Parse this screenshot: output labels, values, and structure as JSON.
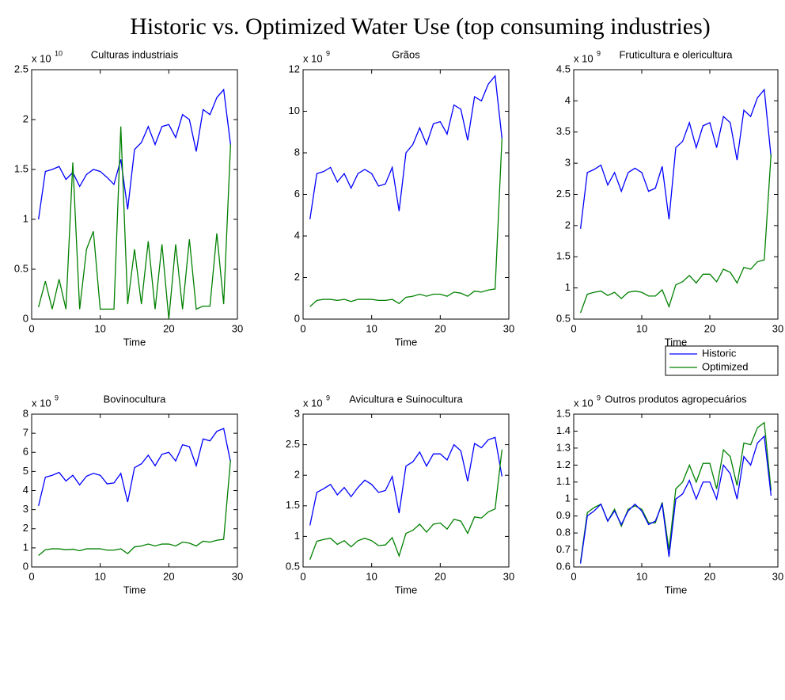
{
  "title": "Historic vs. Optimized Water Use (top consuming industries)",
  "chart_data": [
    {
      "type": "line",
      "title": "Culturas industriais",
      "xlabel": "Time",
      "y_multiplier": "x 10",
      "y_multiplier_exponent": "10",
      "x": [
        1,
        2,
        3,
        4,
        5,
        6,
        7,
        8,
        9,
        10,
        11,
        12,
        13,
        14,
        15,
        16,
        17,
        18,
        19,
        20,
        21,
        22,
        23,
        24,
        25,
        26,
        27,
        28,
        29
      ],
      "xlim": [
        0,
        30
      ],
      "xticks": [
        0,
        10,
        20,
        30
      ],
      "ylim": [
        0,
        2.5
      ],
      "yticks": [
        0,
        0.5,
        1,
        1.5,
        2,
        2.5
      ],
      "series": [
        {
          "color": "#0000ff",
          "values": [
            1.0,
            1.48,
            1.5,
            1.53,
            1.4,
            1.47,
            1.33,
            1.45,
            1.5,
            1.48,
            1.42,
            1.35,
            1.6,
            1.1,
            1.7,
            1.77,
            1.93,
            1.75,
            1.93,
            1.95,
            1.82,
            2.05,
            2.0,
            1.68,
            2.1,
            2.05,
            2.22,
            2.3,
            1.75
          ]
        },
        {
          "color": "#008000",
          "values": [
            0.12,
            0.38,
            0.1,
            0.4,
            0.1,
            1.57,
            0.1,
            0.7,
            0.88,
            0.1,
            0.1,
            0.1,
            1.93,
            0.15,
            0.7,
            0.15,
            0.78,
            0.1,
            0.75,
            0.0,
            0.75,
            0.1,
            0.8,
            0.1,
            0.13,
            0.13,
            0.86,
            0.15,
            1.75
          ]
        }
      ]
    },
    {
      "type": "line",
      "title": "Grãos",
      "xlabel": "Time",
      "y_multiplier": "x 10",
      "y_multiplier_exponent": "9",
      "x": [
        1,
        2,
        3,
        4,
        5,
        6,
        7,
        8,
        9,
        10,
        11,
        12,
        13,
        14,
        15,
        16,
        17,
        18,
        19,
        20,
        21,
        22,
        23,
        24,
        25,
        26,
        27,
        28,
        29
      ],
      "xlim": [
        0,
        30
      ],
      "xticks": [
        0,
        10,
        20,
        30
      ],
      "ylim": [
        0,
        12
      ],
      "yticks": [
        0,
        2,
        4,
        6,
        8,
        10,
        12
      ],
      "series": [
        {
          "color": "#0000ff",
          "values": [
            4.8,
            7.0,
            7.1,
            7.3,
            6.6,
            7.0,
            6.3,
            7.0,
            7.2,
            7.0,
            6.4,
            6.5,
            7.3,
            5.2,
            8.0,
            8.4,
            9.2,
            8.4,
            9.4,
            9.5,
            8.9,
            10.3,
            10.1,
            8.6,
            10.7,
            10.5,
            11.3,
            11.7,
            8.7
          ]
        },
        {
          "color": "#008000",
          "values": [
            0.6,
            0.9,
            0.95,
            0.95,
            0.9,
            0.95,
            0.85,
            0.95,
            0.95,
            0.95,
            0.9,
            0.9,
            0.95,
            0.75,
            1.05,
            1.1,
            1.2,
            1.1,
            1.2,
            1.2,
            1.1,
            1.3,
            1.25,
            1.1,
            1.35,
            1.3,
            1.4,
            1.45,
            8.7
          ]
        }
      ]
    },
    {
      "type": "line",
      "title": "Fruticultura e olericultura",
      "xlabel": "Time",
      "y_multiplier": "x 10",
      "y_multiplier_exponent": "9",
      "legend": "lower right",
      "x": [
        1,
        2,
        3,
        4,
        5,
        6,
        7,
        8,
        9,
        10,
        11,
        12,
        13,
        14,
        15,
        16,
        17,
        18,
        19,
        20,
        21,
        22,
        23,
        24,
        25,
        26,
        27,
        28,
        29
      ],
      "xlim": [
        0,
        30
      ],
      "xticks": [
        0,
        10,
        20,
        30
      ],
      "ylim": [
        0.5,
        4.5
      ],
      "yticks": [
        0.5,
        1,
        1.5,
        2,
        2.5,
        3,
        3.5,
        4,
        4.5
      ],
      "series": [
        {
          "name": "Historic",
          "color": "#0000ff",
          "values": [
            1.95,
            2.85,
            2.9,
            2.97,
            2.65,
            2.85,
            2.55,
            2.85,
            2.92,
            2.85,
            2.55,
            2.6,
            2.95,
            2.1,
            3.25,
            3.35,
            3.65,
            3.25,
            3.6,
            3.65,
            3.25,
            3.75,
            3.65,
            3.05,
            3.85,
            3.75,
            4.05,
            4.18,
            3.1
          ]
        },
        {
          "name": "Optimized",
          "color": "#008000",
          "values": [
            0.6,
            0.9,
            0.93,
            0.95,
            0.88,
            0.93,
            0.83,
            0.93,
            0.95,
            0.93,
            0.87,
            0.87,
            0.97,
            0.7,
            1.05,
            1.1,
            1.2,
            1.08,
            1.22,
            1.22,
            1.1,
            1.3,
            1.25,
            1.08,
            1.33,
            1.3,
            1.42,
            1.45,
            3.15
          ]
        }
      ]
    },
    {
      "type": "line",
      "title": "Bovinocultura",
      "xlabel": "Time",
      "y_multiplier": "x 10",
      "y_multiplier_exponent": "9",
      "x": [
        1,
        2,
        3,
        4,
        5,
        6,
        7,
        8,
        9,
        10,
        11,
        12,
        13,
        14,
        15,
        16,
        17,
        18,
        19,
        20,
        21,
        22,
        23,
        24,
        25,
        26,
        27,
        28,
        29
      ],
      "xlim": [
        0,
        30
      ],
      "xticks": [
        0,
        10,
        20,
        30
      ],
      "ylim": [
        0,
        8
      ],
      "yticks": [
        0,
        1,
        2,
        3,
        4,
        5,
        6,
        7,
        8
      ],
      "series": [
        {
          "color": "#0000ff",
          "values": [
            3.2,
            4.7,
            4.8,
            4.95,
            4.5,
            4.8,
            4.3,
            4.75,
            4.9,
            4.8,
            4.35,
            4.4,
            4.9,
            3.4,
            5.2,
            5.4,
            5.85,
            5.3,
            5.9,
            6.0,
            5.55,
            6.4,
            6.3,
            5.3,
            6.7,
            6.6,
            7.1,
            7.25,
            5.5
          ]
        },
        {
          "color": "#008000",
          "values": [
            0.6,
            0.9,
            0.95,
            0.95,
            0.9,
            0.93,
            0.85,
            0.95,
            0.95,
            0.95,
            0.88,
            0.88,
            0.95,
            0.7,
            1.05,
            1.1,
            1.2,
            1.1,
            1.2,
            1.2,
            1.1,
            1.3,
            1.25,
            1.1,
            1.35,
            1.3,
            1.4,
            1.45,
            5.6
          ]
        }
      ]
    },
    {
      "type": "line",
      "title": "Avicultura e Suinocultura",
      "xlabel": "Time",
      "y_multiplier": "x 10",
      "y_multiplier_exponent": "9",
      "x": [
        1,
        2,
        3,
        4,
        5,
        6,
        7,
        8,
        9,
        10,
        11,
        12,
        13,
        14,
        15,
        16,
        17,
        18,
        19,
        20,
        21,
        22,
        23,
        24,
        25,
        26,
        27,
        28,
        29
      ],
      "xlim": [
        0,
        30
      ],
      "xticks": [
        0,
        10,
        20,
        30
      ],
      "ylim": [
        0.5,
        3
      ],
      "yticks": [
        0.5,
        1,
        1.5,
        2,
        2.5,
        3
      ],
      "series": [
        {
          "color": "#0000ff",
          "values": [
            1.18,
            1.72,
            1.78,
            1.85,
            1.68,
            1.8,
            1.65,
            1.8,
            1.92,
            1.85,
            1.72,
            1.75,
            1.98,
            1.38,
            2.15,
            2.22,
            2.38,
            2.15,
            2.35,
            2.35,
            2.25,
            2.5,
            2.4,
            1.9,
            2.52,
            2.45,
            2.58,
            2.62,
            1.98
          ]
        },
        {
          "color": "#008000",
          "values": [
            0.62,
            0.92,
            0.95,
            0.97,
            0.87,
            0.93,
            0.83,
            0.93,
            0.97,
            0.93,
            0.85,
            0.86,
            0.98,
            0.68,
            1.05,
            1.1,
            1.2,
            1.07,
            1.2,
            1.22,
            1.12,
            1.28,
            1.25,
            1.05,
            1.32,
            1.3,
            1.4,
            1.45,
            2.42
          ]
        }
      ]
    },
    {
      "type": "line",
      "title": "Outros produtos agropecuários",
      "xlabel": "Time",
      "y_multiplier": "x 10",
      "y_multiplier_exponent": "9",
      "x": [
        1,
        2,
        3,
        4,
        5,
        6,
        7,
        8,
        9,
        10,
        11,
        12,
        13,
        14,
        15,
        16,
        17,
        18,
        19,
        20,
        21,
        22,
        23,
        24,
        25,
        26,
        27,
        28,
        29
      ],
      "xlim": [
        0,
        30
      ],
      "xticks": [
        0,
        10,
        20,
        30
      ],
      "ylim": [
        0.6,
        1.5
      ],
      "yticks": [
        0.6,
        0.7,
        0.8,
        0.9,
        1,
        1.1,
        1.2,
        1.3,
        1.4,
        1.5
      ],
      "series": [
        {
          "color": "#008000",
          "values": [
            0.63,
            0.92,
            0.95,
            0.97,
            0.87,
            0.94,
            0.84,
            0.94,
            0.96,
            0.94,
            0.86,
            0.86,
            0.98,
            0.7,
            1.06,
            1.1,
            1.2,
            1.1,
            1.21,
            1.21,
            1.06,
            1.29,
            1.25,
            1.08,
            1.33,
            1.32,
            1.42,
            1.45,
            1.05
          ]
        },
        {
          "color": "#0000ff",
          "values": [
            0.62,
            0.9,
            0.93,
            0.97,
            0.87,
            0.93,
            0.85,
            0.93,
            0.97,
            0.93,
            0.85,
            0.87,
            0.97,
            0.66,
            1.0,
            1.03,
            1.11,
            1.0,
            1.1,
            1.1,
            1.0,
            1.2,
            1.15,
            1.0,
            1.25,
            1.2,
            1.33,
            1.37,
            1.02
          ]
        }
      ]
    }
  ]
}
